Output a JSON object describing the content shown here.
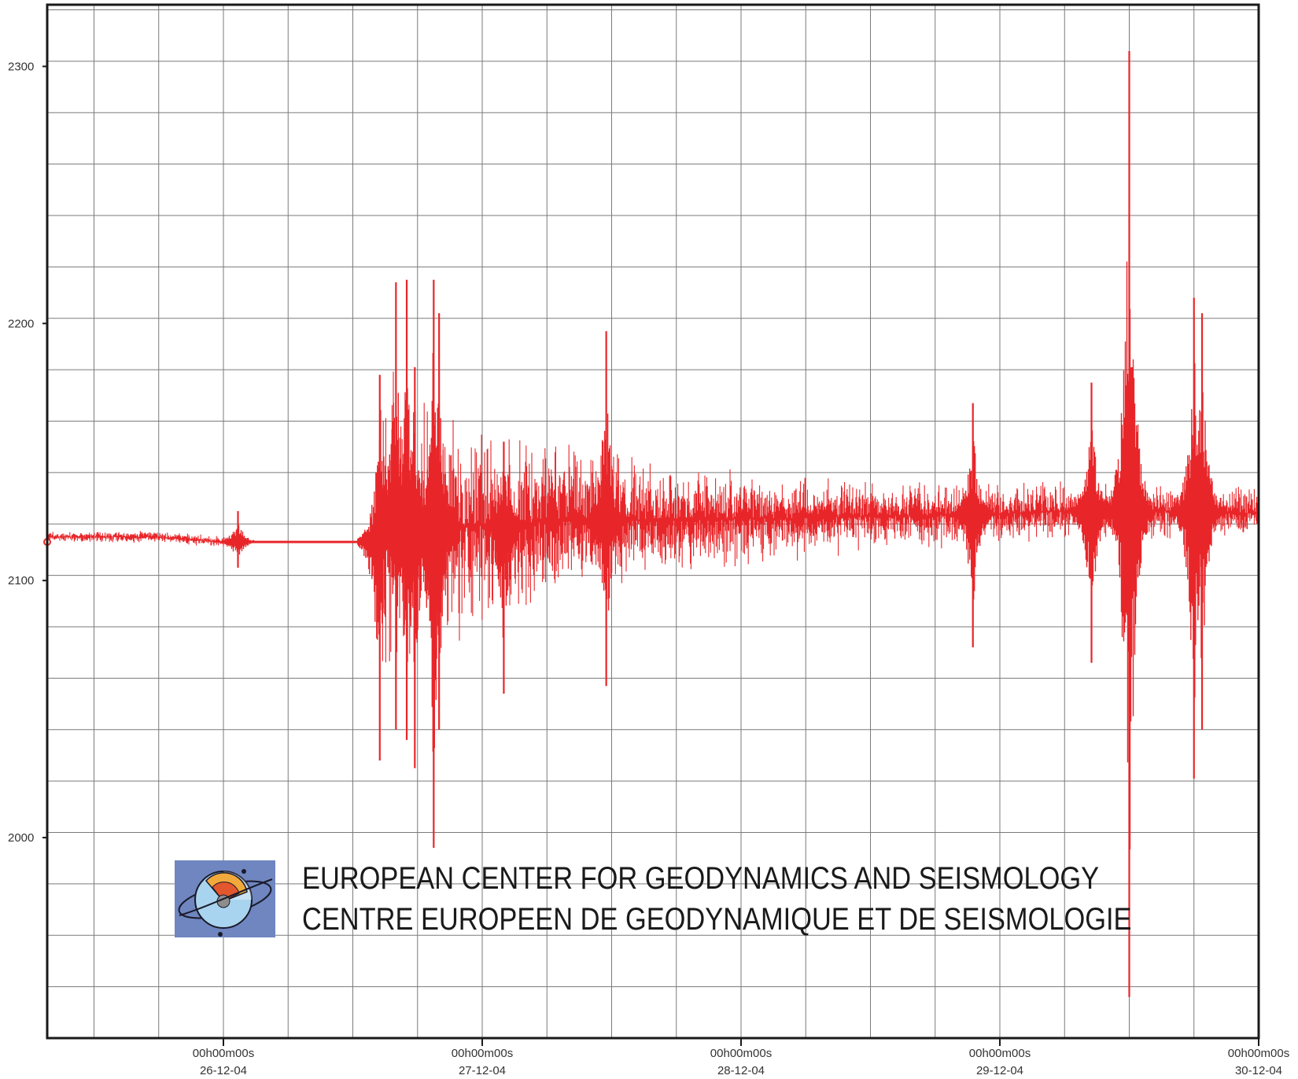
{
  "chart_data": {
    "type": "line",
    "title": "",
    "xlabel": "",
    "ylabel": "",
    "ylim": [
      1922,
      2324
    ],
    "y_ticks": [
      2000,
      2100,
      2200,
      2300
    ],
    "x_ticks": [
      {
        "time": "00h00m00s",
        "date": "26-12-04"
      },
      {
        "time": "00h00m00s",
        "date": "27-12-04"
      },
      {
        "time": "00h00m00s",
        "date": "28-12-04"
      },
      {
        "time": "00h00m00s",
        "date": "29-12-04"
      },
      {
        "time": "00h00m00s",
        "date": "30-12-04"
      }
    ],
    "xlim": [
      "25-12-04 06:51",
      "30-12-04 00:00"
    ],
    "grid": true,
    "line_color": "#e8262a",
    "series": [
      {
        "x": [
          "25-12-04 06:51",
          "25-12-04 18:00",
          "26-12-04 00:00",
          "26-12-04 01:21",
          "26-12-04 14:24",
          "26-12-04 15:00",
          "26-12-04 18:00",
          "26-12-04 22:00",
          "27-12-04 06:00",
          "27-12-04 12:00",
          "27-12-04 18:00",
          "28-12-04 00:00",
          "28-12-04 12:00",
          "29-12-04 00:00",
          "29-12-04 06:00",
          "29-12-04 12:00",
          "29-12-04 18:00",
          "30-12-04 00:00"
        ],
        "y": [
          2117,
          2117,
          2115,
          2115,
          2115,
          2124,
          2120,
          2121,
          2123,
          2123,
          2124,
          2124,
          2125,
          2126,
          2127,
          2127,
          2127,
          2126
        ]
      }
    ],
    "spikes": [
      {
        "x": "26-12-04 01:21",
        "max": 2127,
        "min": 2105
      },
      {
        "x": "26-12-04 14:30",
        "max": 2180,
        "min": 2030
      },
      {
        "x": "26-12-04 16:00",
        "max": 2216,
        "min": 2042
      },
      {
        "x": "26-12-04 17:00",
        "max": 2217,
        "min": 2038
      },
      {
        "x": "26-12-04 17:45",
        "max": 2183,
        "min": 2027
      },
      {
        "x": "26-12-04 19:30",
        "max": 2217,
        "min": 1996
      },
      {
        "x": "26-12-04 20:00",
        "max": 2204,
        "min": 2042
      },
      {
        "x": "27-12-04 02:00",
        "max": 2154,
        "min": 2056
      },
      {
        "x": "27-12-04 11:30",
        "max": 2197,
        "min": 2059
      },
      {
        "x": "28-12-04 21:30",
        "max": 2169,
        "min": 2074
      },
      {
        "x": "29-12-04 08:30",
        "max": 2177,
        "min": 2068
      },
      {
        "x": "29-12-04 12:00",
        "max": 2306,
        "min": 1938
      },
      {
        "x": "29-12-04 18:00",
        "max": 2210,
        "min": 2023
      },
      {
        "x": "29-12-04 18:45",
        "max": 2204,
        "min": 2042
      }
    ]
  },
  "banner": {
    "line1": "EUROPEAN CENTER FOR GEODYNAMICS AND SEISMOLOGY",
    "line2": "CENTRE EUROPEEN DE GEODYNAMIQUE ET DE SEISMOLOGIE",
    "logo_icon": "earth-globe-logo-icon",
    "colors": {
      "logo_bg": "#6f86c0",
      "core": "#e2572e",
      "mantle": "#f2a93b",
      "ocean": "#a9d4ef"
    }
  }
}
